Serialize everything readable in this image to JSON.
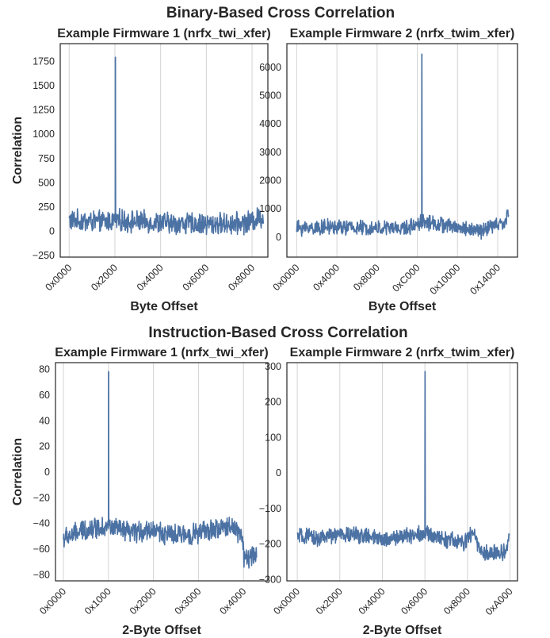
{
  "titles": {
    "binary": "Binary-Based Cross Correlation",
    "instruction": "Instruction-Based Cross Correlation"
  },
  "colors": {
    "line": "#4c72a4",
    "grid": "#d3d3d3",
    "text": "#262626"
  },
  "chart_data": [
    {
      "id": "binary_fw1",
      "type": "line",
      "title": "Example Firmware 1 (nrfx_twi_xfer)",
      "xlabel": "Byte Offset",
      "ylabel": "Correlation",
      "xlim": [
        -400,
        8900
      ],
      "ylim": [
        -270,
        1930
      ],
      "xticks": [
        0,
        8192,
        16384,
        24576,
        32768
      ],
      "xtick_labels": [
        "0x0000",
        "0x2000",
        "0x4000",
        "0x6000",
        "0x8000"
      ],
      "xtick_scale": 0.25,
      "yticks": [
        -250,
        0,
        250,
        500,
        750,
        1000,
        1250,
        1500,
        1750
      ],
      "ytick_labels": [
        "−250",
        "0",
        "250",
        "500",
        "750",
        "1000",
        "1250",
        "1500",
        "1750"
      ],
      "grid": "x",
      "segments": [
        {
          "x": [
            0,
            1500,
            2100,
            3000,
            4500,
            6000,
            7500,
            8000,
            8700
          ],
          "y": [
            110,
            90,
            110,
            95,
            80,
            70,
            75,
            90,
            150
          ]
        }
      ],
      "noise_amplitude": 95,
      "peak": {
        "x": 2070,
        "y": 1790
      }
    },
    {
      "id": "binary_fw2",
      "type": "line",
      "title": "Example Firmware 2 (nrfx_twim_xfer)",
      "xlabel": "Byte Offset",
      "ylabel": "",
      "xlim": [
        -800,
        18000
      ],
      "ylim": [
        -720,
        6820
      ],
      "xticks": [
        0,
        16384,
        32768,
        49152,
        65536,
        81920
      ],
      "xtick_labels": [
        "0x0000",
        "0x4000",
        "0x8000",
        "0xC000",
        "0x10000",
        "0x14000"
      ],
      "xtick_scale": 0.2,
      "yticks": [
        0,
        1000,
        2000,
        3000,
        4000,
        5000,
        6000
      ],
      "ytick_labels": [
        "0",
        "1000",
        "2000",
        "3000",
        "4000",
        "5000",
        "6000"
      ],
      "grid": "x",
      "segments": [
        {
          "x": [
            0,
            3000,
            6000,
            9000,
            10200,
            12000,
            15000,
            16000,
            17000,
            17300
          ],
          "y": [
            300,
            350,
            300,
            300,
            550,
            400,
            200,
            380,
            500,
            850
          ]
        }
      ],
      "noise_amplitude": 230,
      "peak": {
        "x": 10200,
        "y": 6450
      }
    },
    {
      "id": "instr_fw1",
      "type": "line",
      "title": "Example Firmware 1 (nrfx_twi_xfer)",
      "xlabel": "2-Byte Offset",
      "ylabel": "Correlation",
      "xlim": [
        -180,
        4650
      ],
      "ylim": [
        -85,
        85
      ],
      "xticks": [
        0,
        4096,
        8192,
        12288,
        16384
      ],
      "xtick_labels": [
        "0x0000",
        "0x1000",
        "0x2000",
        "0x3000",
        "0x4000"
      ],
      "xtick_scale": 0.25,
      "yticks": [
        -80,
        -60,
        -40,
        -20,
        0,
        20,
        40,
        60,
        80
      ],
      "ytick_labels": [
        "−80",
        "−60",
        "−40",
        "−20",
        "0",
        "20",
        "40",
        "60",
        "80"
      ],
      "grid": "x",
      "segments": [
        {
          "x": [
            0,
            500,
            1000,
            1500,
            2000,
            2500,
            3000,
            3500,
            3900,
            4100
          ],
          "y": [
            -52,
            -45,
            -42,
            -48,
            -45,
            -50,
            -48,
            -45,
            -42,
            -55
          ]
        },
        {
          "x": [
            4100,
            4200,
            4400
          ],
          "y": [
            -68,
            -68,
            -64
          ]
        }
      ],
      "noise_amplitude": 7,
      "peak": {
        "x": 1030,
        "y": 78
      }
    },
    {
      "id": "instr_fw2",
      "type": "line",
      "title": "Example Firmware 2 (nrfx_twim_xfer)",
      "xlabel": "2-Byte Offset",
      "ylabel": "",
      "xlim": [
        -500,
        10600
      ],
      "ylim": [
        -305,
        310
      ],
      "xticks": [
        0,
        8192,
        16384,
        24576,
        32768,
        40960
      ],
      "xtick_labels": [
        "0x0000",
        "0x2000",
        "0x4000",
        "0x6000",
        "0x8000",
        "0xA000"
      ],
      "xtick_scale": 0.25,
      "yticks": [
        -300,
        -200,
        -100,
        0,
        100,
        200,
        300
      ],
      "ytick_labels": [
        "−300",
        "−200",
        "−100",
        "0",
        "100",
        "200",
        "300"
      ],
      "grid": "x",
      "segments": [
        {
          "x": [
            0,
            1000,
            2000,
            3000,
            4000,
            5000,
            6000,
            7000,
            8000,
            8500,
            8700,
            9000,
            9500,
            10000,
            10200
          ],
          "y": [
            -180,
            -185,
            -175,
            -175,
            -190,
            -180,
            -170,
            -185,
            -200,
            -165,
            -210,
            -230,
            -225,
            -225,
            -175
          ]
        }
      ],
      "noise_amplitude": 20,
      "peak": {
        "x": 6150,
        "y": 285
      }
    }
  ]
}
